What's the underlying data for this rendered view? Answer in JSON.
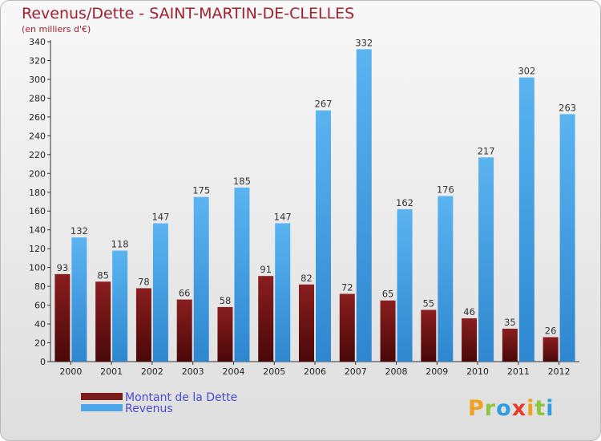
{
  "chart_data": {
    "type": "bar",
    "title": "Revenus/Dette - SAINT-MARTIN-DE-CLELLES",
    "subtitle": "(en milliers d'€)",
    "categories": [
      "2000",
      "2001",
      "2002",
      "2003",
      "2004",
      "2005",
      "2006",
      "2007",
      "2008",
      "2009",
      "2010",
      "2011",
      "2012"
    ],
    "series": [
      {
        "name": "Montant de la Dette",
        "values": [
          93,
          85,
          78,
          66,
          58,
          91,
          82,
          72,
          65,
          55,
          46,
          35,
          26
        ],
        "color": "#7a1a1a"
      },
      {
        "name": "Revenus",
        "values": [
          132,
          118,
          147,
          175,
          185,
          147,
          267,
          332,
          162,
          176,
          217,
          302,
          263
        ],
        "color": "#4ba6ea"
      }
    ],
    "ylim": [
      0,
      340
    ],
    "yticks": [
      0,
      20,
      40,
      60,
      80,
      100,
      120,
      140,
      160,
      180,
      200,
      220,
      240,
      260,
      280,
      300,
      320,
      340
    ],
    "grid": false,
    "legend_position": "bottom-left"
  },
  "logo": {
    "letters": [
      "P",
      "r",
      "o",
      "x",
      "i",
      "t",
      "i"
    ],
    "colors": [
      "#f0a020",
      "#8cc63e",
      "#2e9de0",
      "#e63c2e",
      "#f0a020",
      "#8cc63e",
      "#2e9de0"
    ]
  }
}
